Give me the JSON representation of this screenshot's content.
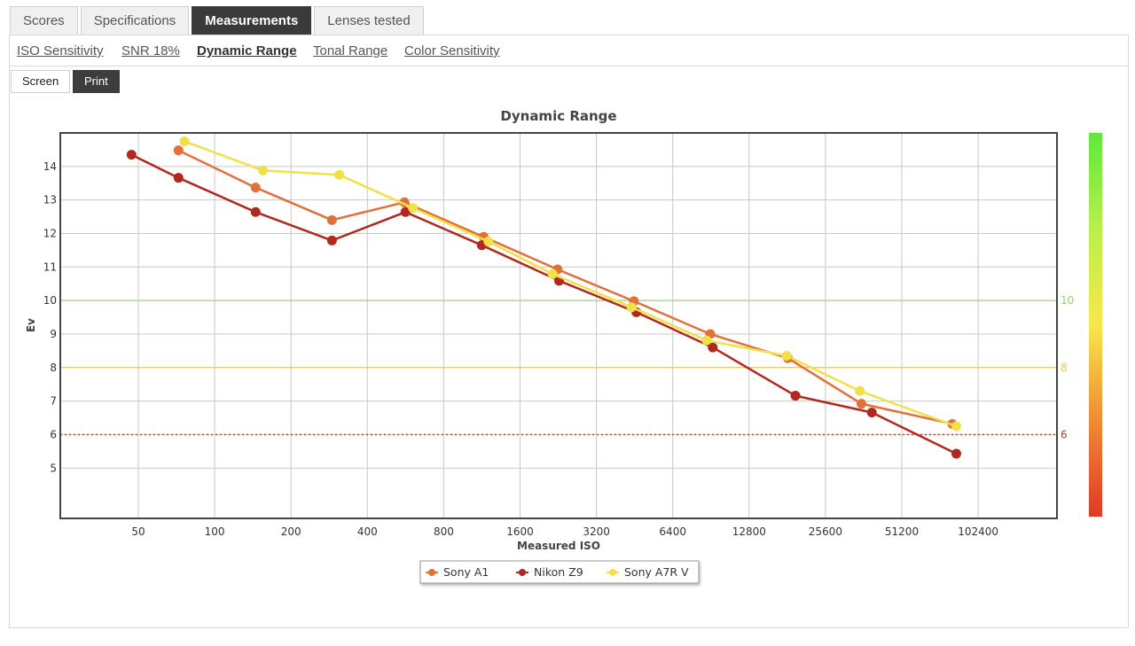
{
  "tabs": [
    {
      "label": "Scores",
      "active": false
    },
    {
      "label": "Specifications",
      "active": false
    },
    {
      "label": "Measurements",
      "active": true
    },
    {
      "label": "Lenses tested",
      "active": false
    }
  ],
  "subtabs": [
    {
      "label": "ISO Sensitivity",
      "active": false
    },
    {
      "label": "SNR 18%",
      "active": false
    },
    {
      "label": "Dynamic Range",
      "active": true
    },
    {
      "label": "Tonal Range",
      "active": false
    },
    {
      "label": "Color Sensitivity",
      "active": false
    }
  ],
  "view_toggle": {
    "screen_label": "Screen",
    "print_label": "Print",
    "selected": "Print"
  },
  "chart_data": {
    "type": "line",
    "title": "Dynamic Range",
    "xlabel": "Measured ISO",
    "ylabel": "Ev",
    "x_scale": "log2",
    "x_ticks": [
      50,
      100,
      200,
      400,
      800,
      1600,
      3200,
      6400,
      12800,
      25600,
      51200,
      102400
    ],
    "y_ticks": [
      5,
      6,
      7,
      8,
      9,
      10,
      11,
      12,
      13,
      14
    ],
    "ylim": [
      3.5,
      15
    ],
    "grid": true,
    "legend_position": "bottom-center",
    "reference_lines": [
      {
        "value": 10,
        "label": "10",
        "color": "#8fd65c",
        "style": "solid"
      },
      {
        "value": 8,
        "label": "8",
        "color": "#e8c84a",
        "style": "solid"
      },
      {
        "value": 6,
        "label": "6",
        "color": "#c0392b",
        "style": "dotted"
      }
    ],
    "color_scale": {
      "colors": [
        "#e03a26",
        "#f08a34",
        "#f7e84a",
        "#b8f04a",
        "#5ee83c"
      ]
    },
    "series": [
      {
        "name": "Sony A1",
        "color": "#e2703a",
        "points": [
          [
            72,
            14.48
          ],
          [
            145,
            13.37
          ],
          [
            290,
            12.4
          ],
          [
            560,
            12.93
          ],
          [
            1150,
            11.9
          ],
          [
            2250,
            10.93
          ],
          [
            4500,
            9.98
          ],
          [
            9000,
            9.0
          ],
          [
            18200,
            8.28
          ],
          [
            35500,
            6.92
          ],
          [
            81000,
            6.32
          ]
        ]
      },
      {
        "name": "Nikon Z9",
        "color": "#b0281e",
        "points": [
          [
            47,
            14.35
          ],
          [
            72,
            13.66
          ],
          [
            145,
            12.64
          ],
          [
            290,
            11.79
          ],
          [
            565,
            12.64
          ],
          [
            1130,
            11.65
          ],
          [
            2280,
            10.59
          ],
          [
            4600,
            9.65
          ],
          [
            9200,
            8.6
          ],
          [
            19500,
            7.16
          ],
          [
            39000,
            6.66
          ],
          [
            84000,
            5.43
          ]
        ]
      },
      {
        "name": "Sony A7R V",
        "color": "#f0e04a",
        "points": [
          [
            76,
            14.75
          ],
          [
            155,
            13.88
          ],
          [
            310,
            13.75
          ],
          [
            605,
            12.76
          ],
          [
            1200,
            11.76
          ],
          [
            2150,
            10.79
          ],
          [
            4400,
            9.8
          ],
          [
            8700,
            8.81
          ],
          [
            18000,
            8.35
          ],
          [
            35000,
            7.3
          ],
          [
            84000,
            6.25
          ]
        ]
      }
    ]
  }
}
